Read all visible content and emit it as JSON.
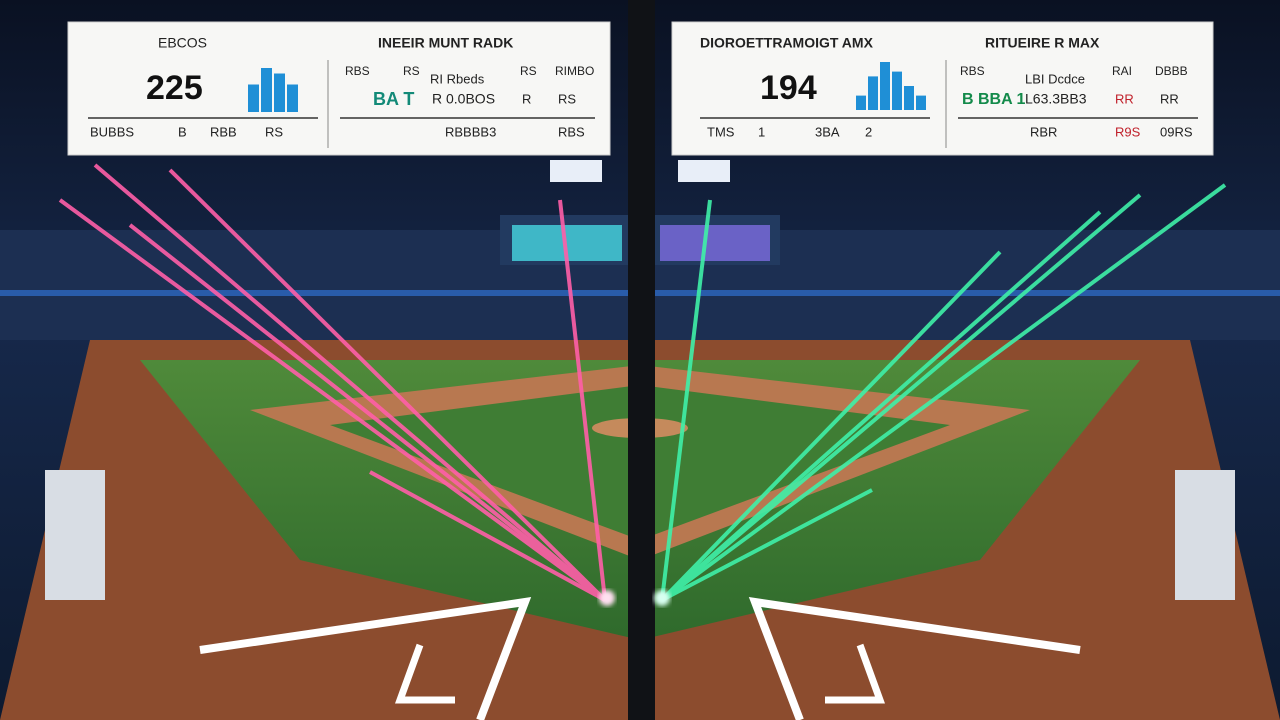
{
  "left_panel": {
    "label": "EBCOS",
    "title": "INEEIR MUNT RADK",
    "score": "225",
    "bars": [
      5,
      8,
      7,
      5
    ],
    "stats": [
      "RBS",
      "RS",
      "RI Rbeds",
      "RS",
      "RIMBO",
      "BA T",
      "R 0.0BOS",
      "R",
      "RS"
    ],
    "footer": [
      "BUBBS",
      "B",
      "RBB",
      "RS",
      "RBBBB3",
      "RBS"
    ]
  },
  "right_panel": {
    "title": "DIOROETTRAMOIGT AMX",
    "subtitle": "RITUEIRE R MAX",
    "score": "194",
    "bars": [
      3,
      7,
      10,
      8,
      5,
      3
    ],
    "stats": [
      "RBS",
      "LBI Dcdce",
      "RAI",
      "DBBB",
      "B BBA 1",
      "L63.3BB3",
      "RR",
      "RR"
    ],
    "footer": [
      "TMS",
      "1",
      "3BA",
      "2",
      "RBR",
      "R9S",
      "09RS"
    ]
  }
}
